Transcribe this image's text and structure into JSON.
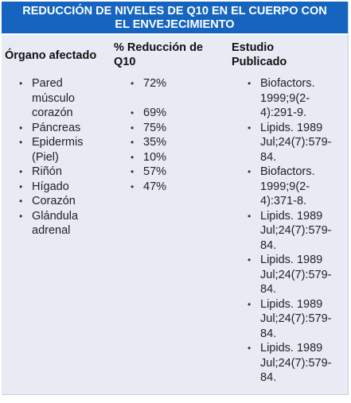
{
  "title": {
    "line1": "REDUCCIÓN DE NIVELES DE Q10 EN EL CUERPO CON",
    "line2": "EL ENVEJECIMIENTO"
  },
  "headers": {
    "organ": "Órgano afectado",
    "reduction_line1": "% Reducción de",
    "reduction_line2": "Q10",
    "study_line1": "Estudio",
    "study_line2": "Publicado"
  },
  "organs": [
    [
      "Pared",
      "músculo",
      "corazón"
    ],
    [
      "Páncreas"
    ],
    [
      "Epidermis",
      "(Piel)"
    ],
    [
      "Riñón"
    ],
    [
      "Hígado"
    ],
    [
      "Corazón"
    ],
    [
      "Glándula",
      "adrenal"
    ]
  ],
  "reductions": [
    "72%",
    "69%",
    "75%",
    "35%",
    "10%",
    "57%",
    "47%"
  ],
  "studies": [
    [
      "Biofactors.",
      "1999;9(2-",
      "4):291-9."
    ],
    [
      "Lipids. 1989",
      "Jul;24(7):579-",
      "84."
    ],
    [
      "Biofactors.",
      "1999;9(2-",
      "4):371-8."
    ],
    [
      "Lipids. 1989",
      "Jul;24(7):579-",
      "84."
    ],
    [
      "Lipids. 1989",
      "Jul;24(7):579-",
      "84."
    ],
    [
      "Lipids. 1989",
      "Jul;24(7):579-",
      "84."
    ],
    [
      "Lipids. 1989",
      "Jul;24(7):579-",
      "84."
    ]
  ],
  "colors": {
    "title_bg": "#1565c0",
    "title_text": "#ffffff",
    "body_bg": "#e8ebf4"
  }
}
